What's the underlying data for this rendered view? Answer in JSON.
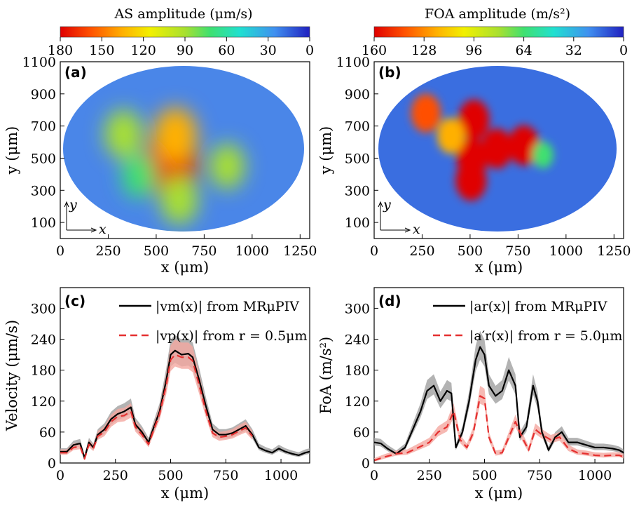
{
  "panels": {
    "a": "(a)",
    "b": "(b)",
    "c": "(c)",
    "d": "(d)"
  },
  "colorbars": {
    "a": {
      "title": "AS amplitude (μm/s)",
      "ticks": [
        "180",
        "150",
        "120",
        "90",
        "60",
        "30",
        "0"
      ]
    },
    "b": {
      "title": "FOA amplitude (m/s²)",
      "ticks": [
        "160",
        "128",
        "96",
        "64",
        "32",
        "0"
      ]
    }
  },
  "colors": {
    "measured": "#000000",
    "model": "#e53030",
    "measured_band": "#9a9a9a",
    "model_band": "#f4a8a0",
    "colormap": [
      "#e00000",
      "#ff5000",
      "#ffb000",
      "#f2f000",
      "#a8e030",
      "#40e070",
      "#20e0d0",
      "#4090f0",
      "#2020c0"
    ]
  },
  "maps": {
    "xlabel": "x (μm)",
    "ylabel": "y (μm)",
    "x_ticks": [
      "0",
      "250",
      "500",
      "750",
      "1000",
      "1250"
    ],
    "y_ticks": [
      "1100",
      "900",
      "700",
      "500",
      "300",
      "100"
    ],
    "inset_x": "x",
    "inset_y": "y"
  },
  "chart_data": [
    {
      "type": "heatmap",
      "panel": "a",
      "title": "AS amplitude (μm/s)",
      "xlabel": "x (μm)",
      "ylabel": "y (μm)",
      "xlim": [
        0,
        1300
      ],
      "ylim": [
        0,
        1100
      ],
      "colorbar_range": [
        180,
        0
      ],
      "hotspots": [
        {
          "x": 580,
          "y": 470,
          "value": 180
        },
        {
          "x": 600,
          "y": 640,
          "value": 130
        },
        {
          "x": 330,
          "y": 650,
          "value": 95
        },
        {
          "x": 870,
          "y": 450,
          "value": 80
        },
        {
          "x": 410,
          "y": 390,
          "value": 75
        },
        {
          "x": 620,
          "y": 240,
          "value": 95
        }
      ]
    },
    {
      "type": "heatmap",
      "panel": "b",
      "title": "FOA amplitude (m/s²)",
      "xlabel": "x (μm)",
      "ylabel": "y (μm)",
      "xlim": [
        0,
        1300
      ],
      "ylim": [
        0,
        1100
      ],
      "colorbar_range": [
        160,
        0
      ],
      "hotspots": [
        {
          "x": 520,
          "y": 740,
          "value": 160
        },
        {
          "x": 510,
          "y": 500,
          "value": 160
        },
        {
          "x": 505,
          "y": 360,
          "value": 160
        },
        {
          "x": 640,
          "y": 560,
          "value": 160
        },
        {
          "x": 780,
          "y": 580,
          "value": 160
        },
        {
          "x": 270,
          "y": 780,
          "value": 150
        },
        {
          "x": 400,
          "y": 640,
          "value": 130
        },
        {
          "x": 880,
          "y": 520,
          "value": 70
        }
      ]
    },
    {
      "type": "line",
      "panel": "c",
      "xlabel": "x (μm)",
      "ylabel": "Velocity (μm/s)",
      "xlim": [
        0,
        1130
      ],
      "ylim": [
        0,
        340
      ],
      "x_ticks": [
        "0",
        "250",
        "500",
        "750",
        "1000"
      ],
      "y_ticks": [
        "0",
        "60",
        "120",
        "180",
        "240",
        "300"
      ],
      "series": [
        {
          "name": "|vm(x)| from MRμPIV",
          "x": [
            0,
            30,
            60,
            90,
            110,
            130,
            150,
            170,
            200,
            230,
            260,
            290,
            320,
            340,
            370,
            400,
            420,
            450,
            480,
            500,
            520,
            550,
            580,
            600,
            630,
            660,
            690,
            720,
            750,
            780,
            810,
            840,
            870,
            900,
            930,
            960,
            990,
            1020,
            1050,
            1080,
            1110,
            1130
          ],
          "y": [
            22,
            22,
            35,
            38,
            10,
            40,
            30,
            55,
            65,
            85,
            95,
            100,
            108,
            75,
            60,
            40,
            65,
            100,
            160,
            210,
            218,
            210,
            212,
            205,
            160,
            110,
            65,
            55,
            55,
            58,
            65,
            72,
            55,
            30,
            24,
            20,
            28,
            22,
            18,
            15,
            20,
            22
          ]
        },
        {
          "name": "|vp(x)| from r = 0.5μm",
          "x": [
            0,
            30,
            60,
            90,
            110,
            130,
            150,
            170,
            200,
            230,
            260,
            290,
            320,
            340,
            370,
            400,
            420,
            450,
            480,
            500,
            520,
            550,
            580,
            600,
            630,
            660,
            690,
            720,
            750,
            780,
            810,
            840,
            870
          ],
          "y": [
            20,
            20,
            30,
            32,
            8,
            36,
            28,
            52,
            60,
            80,
            90,
            92,
            100,
            70,
            55,
            36,
            60,
            95,
            150,
            200,
            210,
            205,
            205,
            198,
            150,
            100,
            58,
            50,
            52,
            55,
            62,
            68,
            52
          ]
        }
      ],
      "bands": [
        {
          "series": "measured",
          "x": [
            720,
            760,
            800,
            840,
            880,
            920
          ],
          "lower": [
            50,
            52,
            45,
            40,
            40,
            25
          ],
          "upper": [
            62,
            80,
            105,
            90,
            60,
            35
          ]
        }
      ]
    },
    {
      "type": "line",
      "panel": "d",
      "xlabel": "x (μm)",
      "ylabel": "FoA (m/s²)",
      "xlim": [
        0,
        1130
      ],
      "ylim": [
        0,
        340
      ],
      "x_ticks": [
        "0",
        "250",
        "500",
        "750",
        "1000"
      ],
      "y_ticks": [
        "0",
        "60",
        "120",
        "180",
        "240",
        "300"
      ],
      "series": [
        {
          "name": "|ar(x)| from MRμPIV",
          "x": [
            0,
            30,
            60,
            100,
            140,
            180,
            210,
            240,
            270,
            300,
            330,
            350,
            370,
            400,
            430,
            460,
            480,
            500,
            520,
            550,
            580,
            610,
            640,
            660,
            690,
            720,
            740,
            760,
            790,
            820,
            850,
            880,
            920,
            960,
            1000,
            1040,
            1080,
            1110,
            1130
          ],
          "y": [
            40,
            38,
            28,
            18,
            30,
            70,
            100,
            140,
            150,
            120,
            140,
            135,
            30,
            60,
            120,
            200,
            225,
            210,
            150,
            130,
            140,
            180,
            150,
            50,
            70,
            150,
            120,
            60,
            25,
            50,
            60,
            40,
            40,
            35,
            30,
            30,
            28,
            25,
            20
          ]
        },
        {
          "name": "|a′r(x)| from r = 5.0μm",
          "x": [
            0,
            50,
            100,
            150,
            200,
            250,
            290,
            330,
            360,
            390,
            420,
            450,
            480,
            500,
            520,
            550,
            580,
            610,
            640,
            670,
            700,
            730,
            760,
            800,
            840,
            880,
            920,
            960,
            1000,
            1040,
            1080,
            1110,
            1130
          ],
          "y": [
            5,
            12,
            18,
            20,
            30,
            40,
            60,
            70,
            100,
            45,
            30,
            60,
            130,
            125,
            50,
            18,
            20,
            50,
            80,
            50,
            25,
            65,
            55,
            45,
            50,
            28,
            20,
            18,
            15,
            14,
            15,
            15,
            12
          ]
        }
      ]
    }
  ],
  "legends": {
    "c": [
      {
        "text": "|vm(x)| from MRμPIV",
        "style": "solid"
      },
      {
        "text": "|vp(x)| from r = 0.5μm",
        "style": "dashed"
      }
    ],
    "d": [
      {
        "text": "|ar(x)| from MRμPIV",
        "style": "solid"
      },
      {
        "text": "|a′r(x)| from r = 5.0μm",
        "style": "dashed"
      }
    ]
  }
}
